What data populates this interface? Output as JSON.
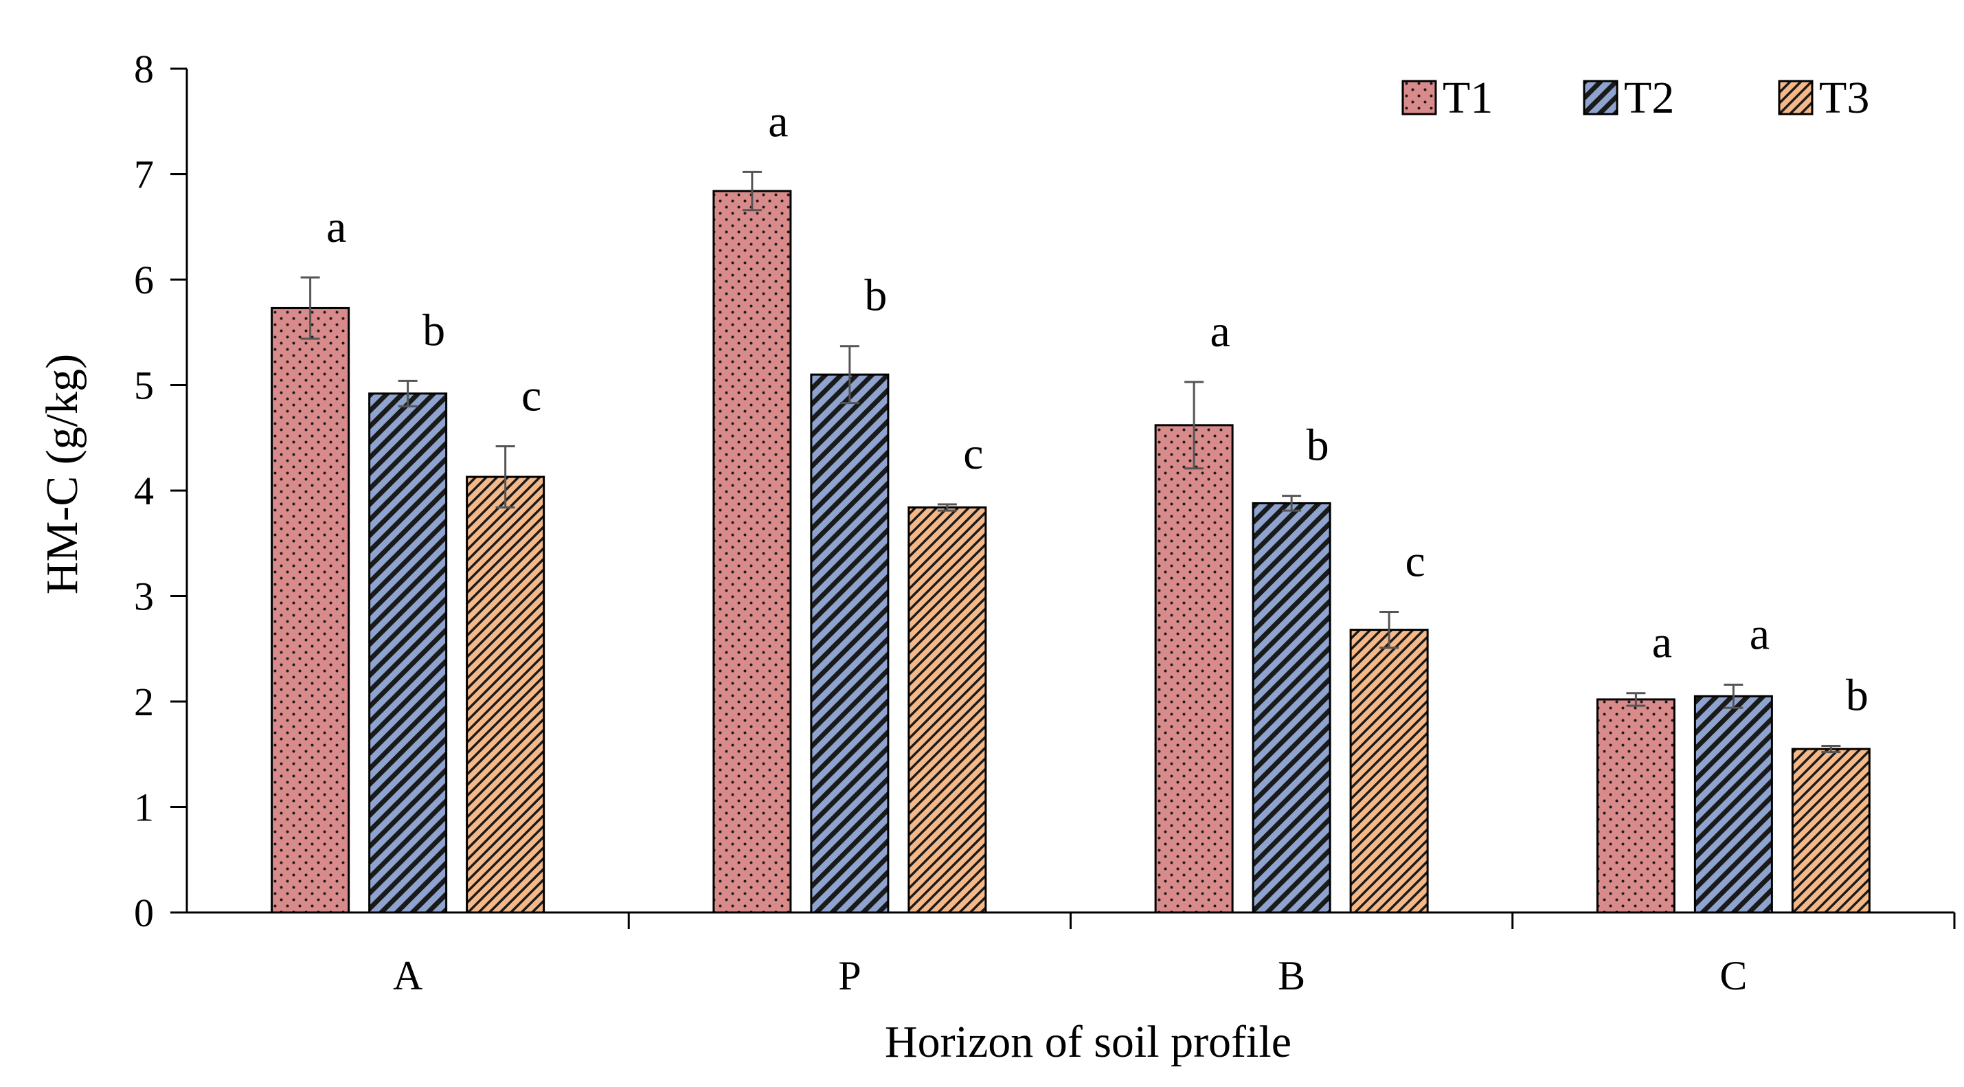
{
  "chart_data": {
    "type": "bar",
    "title": "",
    "xlabel": "Horizon of soil profile",
    "ylabel": "HM-C (g/kg)",
    "ylim": [
      0,
      8
    ],
    "yticks": [
      "0",
      "1",
      "2",
      "3",
      "4",
      "5",
      "6",
      "7",
      "8"
    ],
    "grid": false,
    "legend_position": "top-right",
    "categories": [
      "A",
      "P",
      "B",
      "C"
    ],
    "series": [
      {
        "name": "T1",
        "color": "#d98b8b",
        "pattern": "dots",
        "values": [
          5.73,
          6.84,
          4.62,
          2.02
        ],
        "errors": [
          0.29,
          0.18,
          0.41,
          0.06
        ],
        "significance": [
          "a",
          "a",
          "a",
          "a"
        ]
      },
      {
        "name": "T2",
        "color": "#8ea4cf",
        "pattern": "diagonal-wide",
        "values": [
          4.92,
          5.1,
          3.88,
          2.05
        ],
        "errors": [
          0.12,
          0.27,
          0.07,
          0.11
        ],
        "significance": [
          "b",
          "b",
          "b",
          "a"
        ]
      },
      {
        "name": "T3",
        "color": "#f5b989",
        "pattern": "diagonal-fine",
        "values": [
          4.13,
          3.84,
          2.68,
          1.55
        ],
        "errors": [
          0.29,
          0.03,
          0.17,
          0.03
        ],
        "significance": [
          "c",
          "c",
          "c",
          "b"
        ]
      }
    ]
  }
}
